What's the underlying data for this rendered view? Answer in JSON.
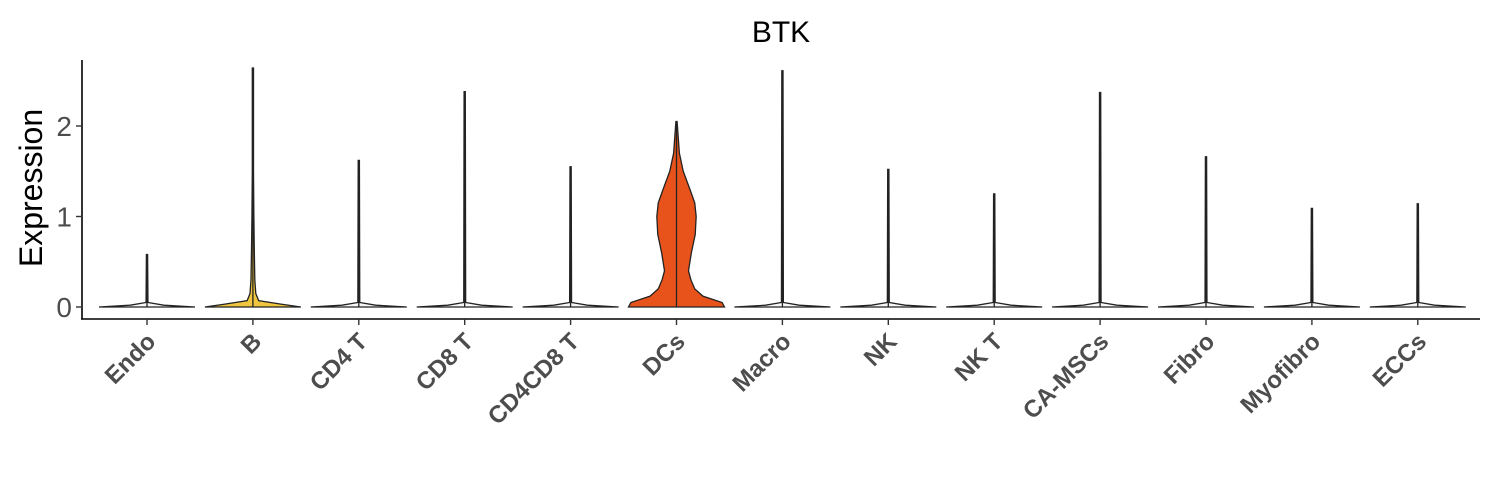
{
  "chart_data": {
    "type": "violin",
    "title": "BTK",
    "ylabel": "Expression",
    "xlabel": "",
    "ylim": [
      -0.12,
      2.75
    ],
    "yticks": [
      0,
      1,
      2
    ],
    "grid": false,
    "legend": "none",
    "categories": [
      "Endo",
      "B",
      "CD4 T",
      "CD8 T",
      "CD4CD8 T",
      "DCs",
      "Macro",
      "NK",
      "NK T",
      "CA-MSCs",
      "Fibro",
      "Myofibro",
      "ECCs"
    ],
    "max_values": [
      0.58,
      2.64,
      1.62,
      2.38,
      1.55,
      2.05,
      2.61,
      1.52,
      1.25,
      2.37,
      1.66,
      1.09,
      1.14
    ],
    "colors": [
      "#f7f7f7",
      "#f0c63e",
      "#f7f7f7",
      "#f7f7f7",
      "#f7f7f7",
      "#e8531c",
      "#f7f7f7",
      "#f7f7f7",
      "#f7f7f7",
      "#f7f7f7",
      "#f7f7f7",
      "#f7f7f7",
      "#f7f7f7"
    ],
    "density_profiles": {
      "B": [
        [
          0,
          1.0
        ],
        [
          0.03,
          0.6
        ],
        [
          0.07,
          0.12
        ],
        [
          0.15,
          0.06
        ],
        [
          0.3,
          0.04
        ],
        [
          0.6,
          0.03
        ],
        [
          1.0,
          0.02
        ],
        [
          1.5,
          0.01
        ],
        [
          2.64,
          0.005
        ]
      ],
      "DCs": [
        [
          0,
          1.0
        ],
        [
          0.05,
          0.95
        ],
        [
          0.12,
          0.55
        ],
        [
          0.2,
          0.38
        ],
        [
          0.3,
          0.3
        ],
        [
          0.4,
          0.25
        ],
        [
          0.6,
          0.31
        ],
        [
          0.8,
          0.39
        ],
        [
          1.0,
          0.41
        ],
        [
          1.15,
          0.38
        ],
        [
          1.3,
          0.28
        ],
        [
          1.5,
          0.14
        ],
        [
          1.7,
          0.06
        ],
        [
          2.05,
          0.01
        ]
      ]
    }
  }
}
